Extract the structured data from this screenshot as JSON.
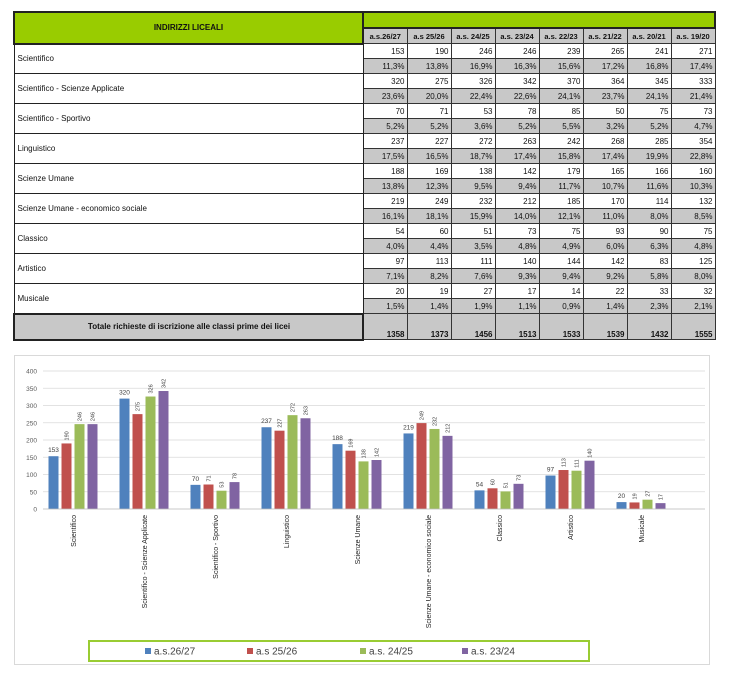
{
  "table": {
    "header": "INDIRIZZI LICEALI",
    "columns": [
      "a.s.26/27",
      "a.s 25/26",
      "a.s. 24/25",
      "a.s. 23/24",
      "a.s. 22/23",
      "a.s. 21/22",
      "a.s. 20/21",
      "a.s. 19/20"
    ],
    "rows": [
      {
        "label": "Scientifico",
        "values": [
          "153",
          "190",
          "246",
          "246",
          "239",
          "265",
          "241",
          "271"
        ],
        "pct": [
          "11,3%",
          "13,8%",
          "16,9%",
          "16,3%",
          "15,6%",
          "17,2%",
          "16,8%",
          "17,4%"
        ]
      },
      {
        "label": "Scientifico - Scienze Applicate",
        "values": [
          "320",
          "275",
          "326",
          "342",
          "370",
          "364",
          "345",
          "333"
        ],
        "pct": [
          "23,6%",
          "20,0%",
          "22,4%",
          "22,6%",
          "24,1%",
          "23,7%",
          "24,1%",
          "21,4%"
        ]
      },
      {
        "label": "Scientifico - Sportivo",
        "values": [
          "70",
          "71",
          "53",
          "78",
          "85",
          "50",
          "75",
          "73"
        ],
        "pct": [
          "5,2%",
          "5,2%",
          "3,6%",
          "5,2%",
          "5,5%",
          "3,2%",
          "5,2%",
          "4,7%"
        ]
      },
      {
        "label": "Linguistico",
        "values": [
          "237",
          "227",
          "272",
          "263",
          "242",
          "268",
          "285",
          "354"
        ],
        "pct": [
          "17,5%",
          "16,5%",
          "18,7%",
          "17,4%",
          "15,8%",
          "17,4%",
          "19,9%",
          "22,8%"
        ]
      },
      {
        "label": "Scienze Umane",
        "values": [
          "188",
          "169",
          "138",
          "142",
          "179",
          "165",
          "166",
          "160"
        ],
        "pct": [
          "13,8%",
          "12,3%",
          "9,5%",
          "9,4%",
          "11,7%",
          "10,7%",
          "11,6%",
          "10,3%"
        ]
      },
      {
        "label": "Scienze Umane - economico sociale",
        "values": [
          "219",
          "249",
          "232",
          "212",
          "185",
          "170",
          "114",
          "132"
        ],
        "pct": [
          "16,1%",
          "18,1%",
          "15,9%",
          "14,0%",
          "12,1%",
          "11,0%",
          "8,0%",
          "8,5%"
        ]
      },
      {
        "label": "Classico",
        "values": [
          "54",
          "60",
          "51",
          "73",
          "75",
          "93",
          "90",
          "75"
        ],
        "pct": [
          "4,0%",
          "4,4%",
          "3,5%",
          "4,8%",
          "4,9%",
          "6,0%",
          "6,3%",
          "4,8%"
        ]
      },
      {
        "label": "Artistico",
        "values": [
          "97",
          "113",
          "111",
          "140",
          "144",
          "142",
          "83",
          "125"
        ],
        "pct": [
          "7,1%",
          "8,2%",
          "7,6%",
          "9,3%",
          "9,4%",
          "9,2%",
          "5,8%",
          "8,0%"
        ]
      },
      {
        "label": "Musicale",
        "values": [
          "20",
          "19",
          "27",
          "17",
          "14",
          "22",
          "33",
          "32"
        ],
        "pct": [
          "1,5%",
          "1,4%",
          "1,9%",
          "1,1%",
          "0,9%",
          "1,4%",
          "2,3%",
          "2,1%"
        ]
      }
    ],
    "total_label": "Totale richieste di iscrizione alle classi prime dei licei",
    "totals": [
      "1358",
      "1373",
      "1456",
      "1513",
      "1533",
      "1539",
      "1432",
      "1555"
    ]
  },
  "chart_data": {
    "type": "bar",
    "title": "",
    "categories": [
      "Scientifico",
      "Scientifico - Scienze Applicate",
      "Scientifico - Sportivo",
      "Linguistico",
      "Scienze Umane",
      "Scienze Umane - economico sociale",
      "Classico",
      "Artistico",
      "Musicale"
    ],
    "series": [
      {
        "name": "a.s.26/27",
        "color": "#4f81bd",
        "values": [
          153,
          320,
          70,
          237,
          188,
          219,
          54,
          97,
          20
        ]
      },
      {
        "name": "a.s 25/26",
        "color": "#c0504d",
        "values": [
          190,
          275,
          71,
          227,
          169,
          249,
          60,
          113,
          19
        ]
      },
      {
        "name": "a.s. 24/25",
        "color": "#9bbb59",
        "values": [
          246,
          326,
          53,
          272,
          138,
          232,
          51,
          111,
          27
        ]
      },
      {
        "name": "a.s. 23/24",
        "color": "#8064a2",
        "values": [
          246,
          342,
          78,
          263,
          142,
          212,
          73,
          140,
          17
        ]
      }
    ],
    "ylim": [
      0,
      400
    ],
    "yticks": [
      0,
      50,
      100,
      150,
      200,
      250,
      300,
      350,
      400
    ],
    "grid": true,
    "legend": "bottom",
    "legend_border_color": "#99cc33"
  }
}
